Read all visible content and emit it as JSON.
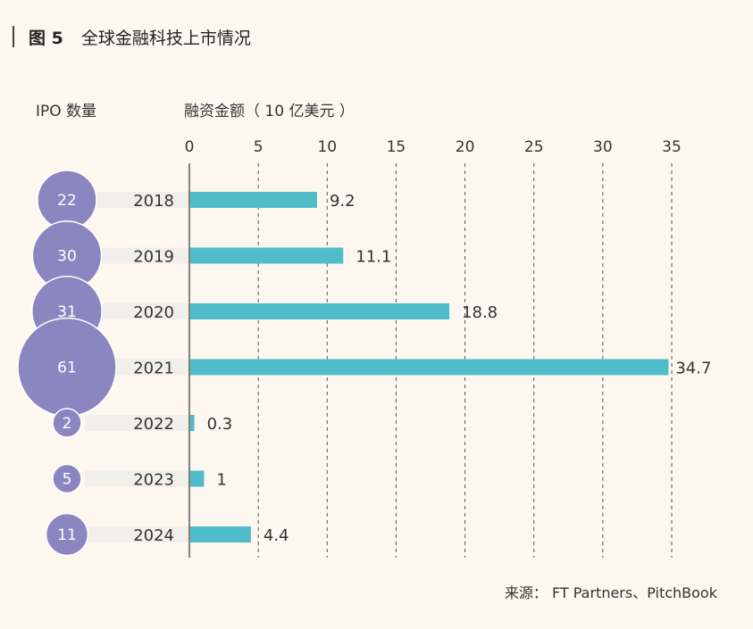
{
  "figure": {
    "label": "图 5",
    "title": "全球金融科技上市情况"
  },
  "labels": {
    "ipo_count": "IPO 数量",
    "funding": "融资金额（ 10 亿美元 ）"
  },
  "source": "来源： FT Partners、PitchBook",
  "colors": {
    "bar": "#4fbdc9",
    "bubble": "#8b86c0",
    "bubble_stroke": "#ffffff",
    "grid": "#555555",
    "axis": "#333333",
    "track": "#f1efea"
  },
  "chart_data": {
    "type": "bar",
    "orientation": "horizontal",
    "categories": [
      "2018",
      "2019",
      "2020",
      "2021",
      "2022",
      "2023",
      "2024"
    ],
    "series": [
      {
        "values": [
          9.2,
          11.1,
          18.8,
          34.7,
          0.3,
          1,
          4.4
        ]
      }
    ],
    "value_labels": [
      "9.2",
      "11.1",
      "18.8",
      "34.7",
      "0.3",
      "1",
      "4.4"
    ],
    "ipo_counts": [
      22,
      30,
      31,
      61,
      2,
      5,
      11
    ],
    "x_ticks": [
      0,
      5,
      10,
      15,
      20,
      25,
      30,
      35
    ],
    "xlim": [
      0,
      35
    ],
    "grid": true,
    "grid_style": "dashed-vertical",
    "tick_position": "top"
  }
}
